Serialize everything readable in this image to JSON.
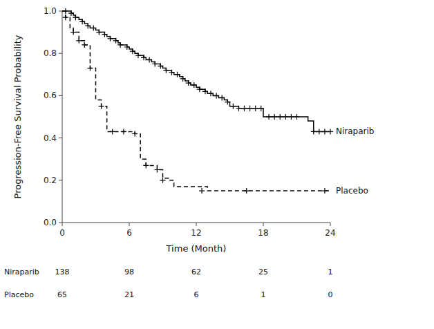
{
  "chart_data": {
    "type": "step",
    "xlabel": "Time (Month)",
    "ylabel": "Progression-Free Survival Probability",
    "xlim": [
      0,
      24
    ],
    "ylim": [
      0.0,
      1.0
    ],
    "xticks": [
      0,
      6,
      12,
      18,
      24
    ],
    "yticks": [
      {
        "value": 0.0,
        "label": "0.0"
      },
      0.2,
      0.4,
      0.6,
      0.8,
      {
        "value": 1.0,
        "label": "1.0"
      }
    ],
    "grid": false,
    "series": [
      {
        "name": "Niraparib",
        "type": "step",
        "color": "#000000",
        "line_style": "solid",
        "x": [
          0,
          0.3,
          0.5,
          0.8,
          1.0,
          1.2,
          1.5,
          1.8,
          2.0,
          2.3,
          2.5,
          2.8,
          3.0,
          3.3,
          3.5,
          3.8,
          4.0,
          4.3,
          4.5,
          4.8,
          5.0,
          5.2,
          5.5,
          5.8,
          6.0,
          6.3,
          6.5,
          6.8,
          7.0,
          7.3,
          7.5,
          7.8,
          8.0,
          8.3,
          8.5,
          8.8,
          9.0,
          9.3,
          9.5,
          9.8,
          10.0,
          10.3,
          10.5,
          10.8,
          11.0,
          11.3,
          11.5,
          11.8,
          12.0,
          12.3,
          12.5,
          12.8,
          13.0,
          13.3,
          13.5,
          13.8,
          14.0,
          14.3,
          14.5,
          14.8,
          15.0,
          15.3,
          15.5,
          15.8,
          16.0,
          16.3,
          16.5,
          16.8,
          17.0,
          17.3,
          17.5,
          17.8,
          18.0,
          18.5,
          19.0,
          19.5,
          20.0,
          20.5,
          21.0,
          21.5,
          22.0,
          22.5,
          23.0,
          23.5,
          24.0
        ],
        "values": [
          1.0,
          1.0,
          1.0,
          0.99,
          0.98,
          0.97,
          0.96,
          0.95,
          0.94,
          0.93,
          0.92,
          0.92,
          0.91,
          0.9,
          0.9,
          0.89,
          0.88,
          0.87,
          0.87,
          0.86,
          0.85,
          0.84,
          0.84,
          0.83,
          0.82,
          0.81,
          0.8,
          0.79,
          0.79,
          0.78,
          0.77,
          0.77,
          0.76,
          0.75,
          0.75,
          0.74,
          0.73,
          0.72,
          0.72,
          0.71,
          0.7,
          0.7,
          0.69,
          0.68,
          0.67,
          0.66,
          0.65,
          0.65,
          0.64,
          0.63,
          0.63,
          0.62,
          0.61,
          0.61,
          0.6,
          0.6,
          0.59,
          0.59,
          0.58,
          0.57,
          0.55,
          0.55,
          0.55,
          0.54,
          0.54,
          0.54,
          0.54,
          0.54,
          0.54,
          0.54,
          0.54,
          0.54,
          0.5,
          0.5,
          0.5,
          0.5,
          0.5,
          0.5,
          0.5,
          0.5,
          0.48,
          0.43,
          0.43,
          0.43,
          0.43
        ]
      },
      {
        "name": "Placebo",
        "type": "step",
        "color": "#000000",
        "line_style": "dashed",
        "x": [
          0,
          0.3,
          0.7,
          1.0,
          1.5,
          2.0,
          2.5,
          3.0,
          3.5,
          4.0,
          4.5,
          5.0,
          5.5,
          6.0,
          6.5,
          7.0,
          7.5,
          8.0,
          8.5,
          9.0,
          9.5,
          10.0,
          10.5,
          11.0,
          11.5,
          12.0,
          12.5,
          13.0,
          14.0,
          15.0,
          16.0,
          17.0,
          18.0,
          19.0,
          20.0,
          21.0,
          22.0,
          23.0,
          24.0
        ],
        "values": [
          1.0,
          0.97,
          0.92,
          0.9,
          0.86,
          0.84,
          0.73,
          0.58,
          0.55,
          0.43,
          0.43,
          0.43,
          0.43,
          0.43,
          0.42,
          0.3,
          0.27,
          0.27,
          0.25,
          0.21,
          0.2,
          0.17,
          0.17,
          0.17,
          0.17,
          0.17,
          0.17,
          0.15,
          0.15,
          0.15,
          0.15,
          0.15,
          0.15,
          0.15,
          0.15,
          0.15,
          0.15,
          0.15,
          0.15
        ]
      },
      {
        "type": "scatter",
        "color": "#000000",
        "marker": "plus",
        "x": [
          0.3,
          0.8,
          1.2,
          1.8,
          2.3,
          2.8,
          3.3,
          3.8,
          4.3,
          4.8,
          5.2,
          5.8,
          6.3,
          6.8,
          7.3,
          7.8,
          8.3,
          8.8,
          9.3,
          9.8,
          10.3,
          10.8,
          11.3,
          11.8,
          12.3,
          12.8,
          13.3,
          13.8,
          14.3,
          14.8,
          15.3,
          15.8,
          16.3,
          16.8,
          17.3,
          17.8,
          18.5,
          19.0,
          19.5,
          20.0,
          20.5,
          21.0,
          22.5,
          23.0,
          23.5,
          24.0
        ],
        "values": [
          1.0,
          0.99,
          0.97,
          0.95,
          0.93,
          0.92,
          0.9,
          0.89,
          0.87,
          0.86,
          0.84,
          0.83,
          0.81,
          0.79,
          0.78,
          0.77,
          0.75,
          0.74,
          0.72,
          0.71,
          0.7,
          0.68,
          0.66,
          0.65,
          0.63,
          0.62,
          0.61,
          0.6,
          0.59,
          0.57,
          0.55,
          0.54,
          0.54,
          0.54,
          0.54,
          0.54,
          0.5,
          0.5,
          0.5,
          0.5,
          0.5,
          0.5,
          0.43,
          0.43,
          0.43,
          0.43
        ]
      },
      {
        "type": "scatter",
        "color": "#000000",
        "marker": "plus",
        "x": [
          0.3,
          1.0,
          1.5,
          2.0,
          2.5,
          3.5,
          4.5,
          5.5,
          6.5,
          7.5,
          8.5,
          9.0,
          12.5,
          16.5,
          23.5
        ],
        "values": [
          0.97,
          0.9,
          0.86,
          0.84,
          0.73,
          0.55,
          0.43,
          0.43,
          0.42,
          0.27,
          0.25,
          0.2,
          0.15,
          0.15,
          0.15
        ]
      }
    ],
    "at_risk": {
      "x": [
        0,
        6,
        12,
        18,
        24
      ],
      "rows": [
        {
          "name": "Niraparib",
          "values": [
            138,
            98,
            62,
            25,
            1
          ]
        },
        {
          "name": "Placebo",
          "values": [
            65,
            21,
            6,
            1,
            0
          ]
        }
      ]
    }
  }
}
